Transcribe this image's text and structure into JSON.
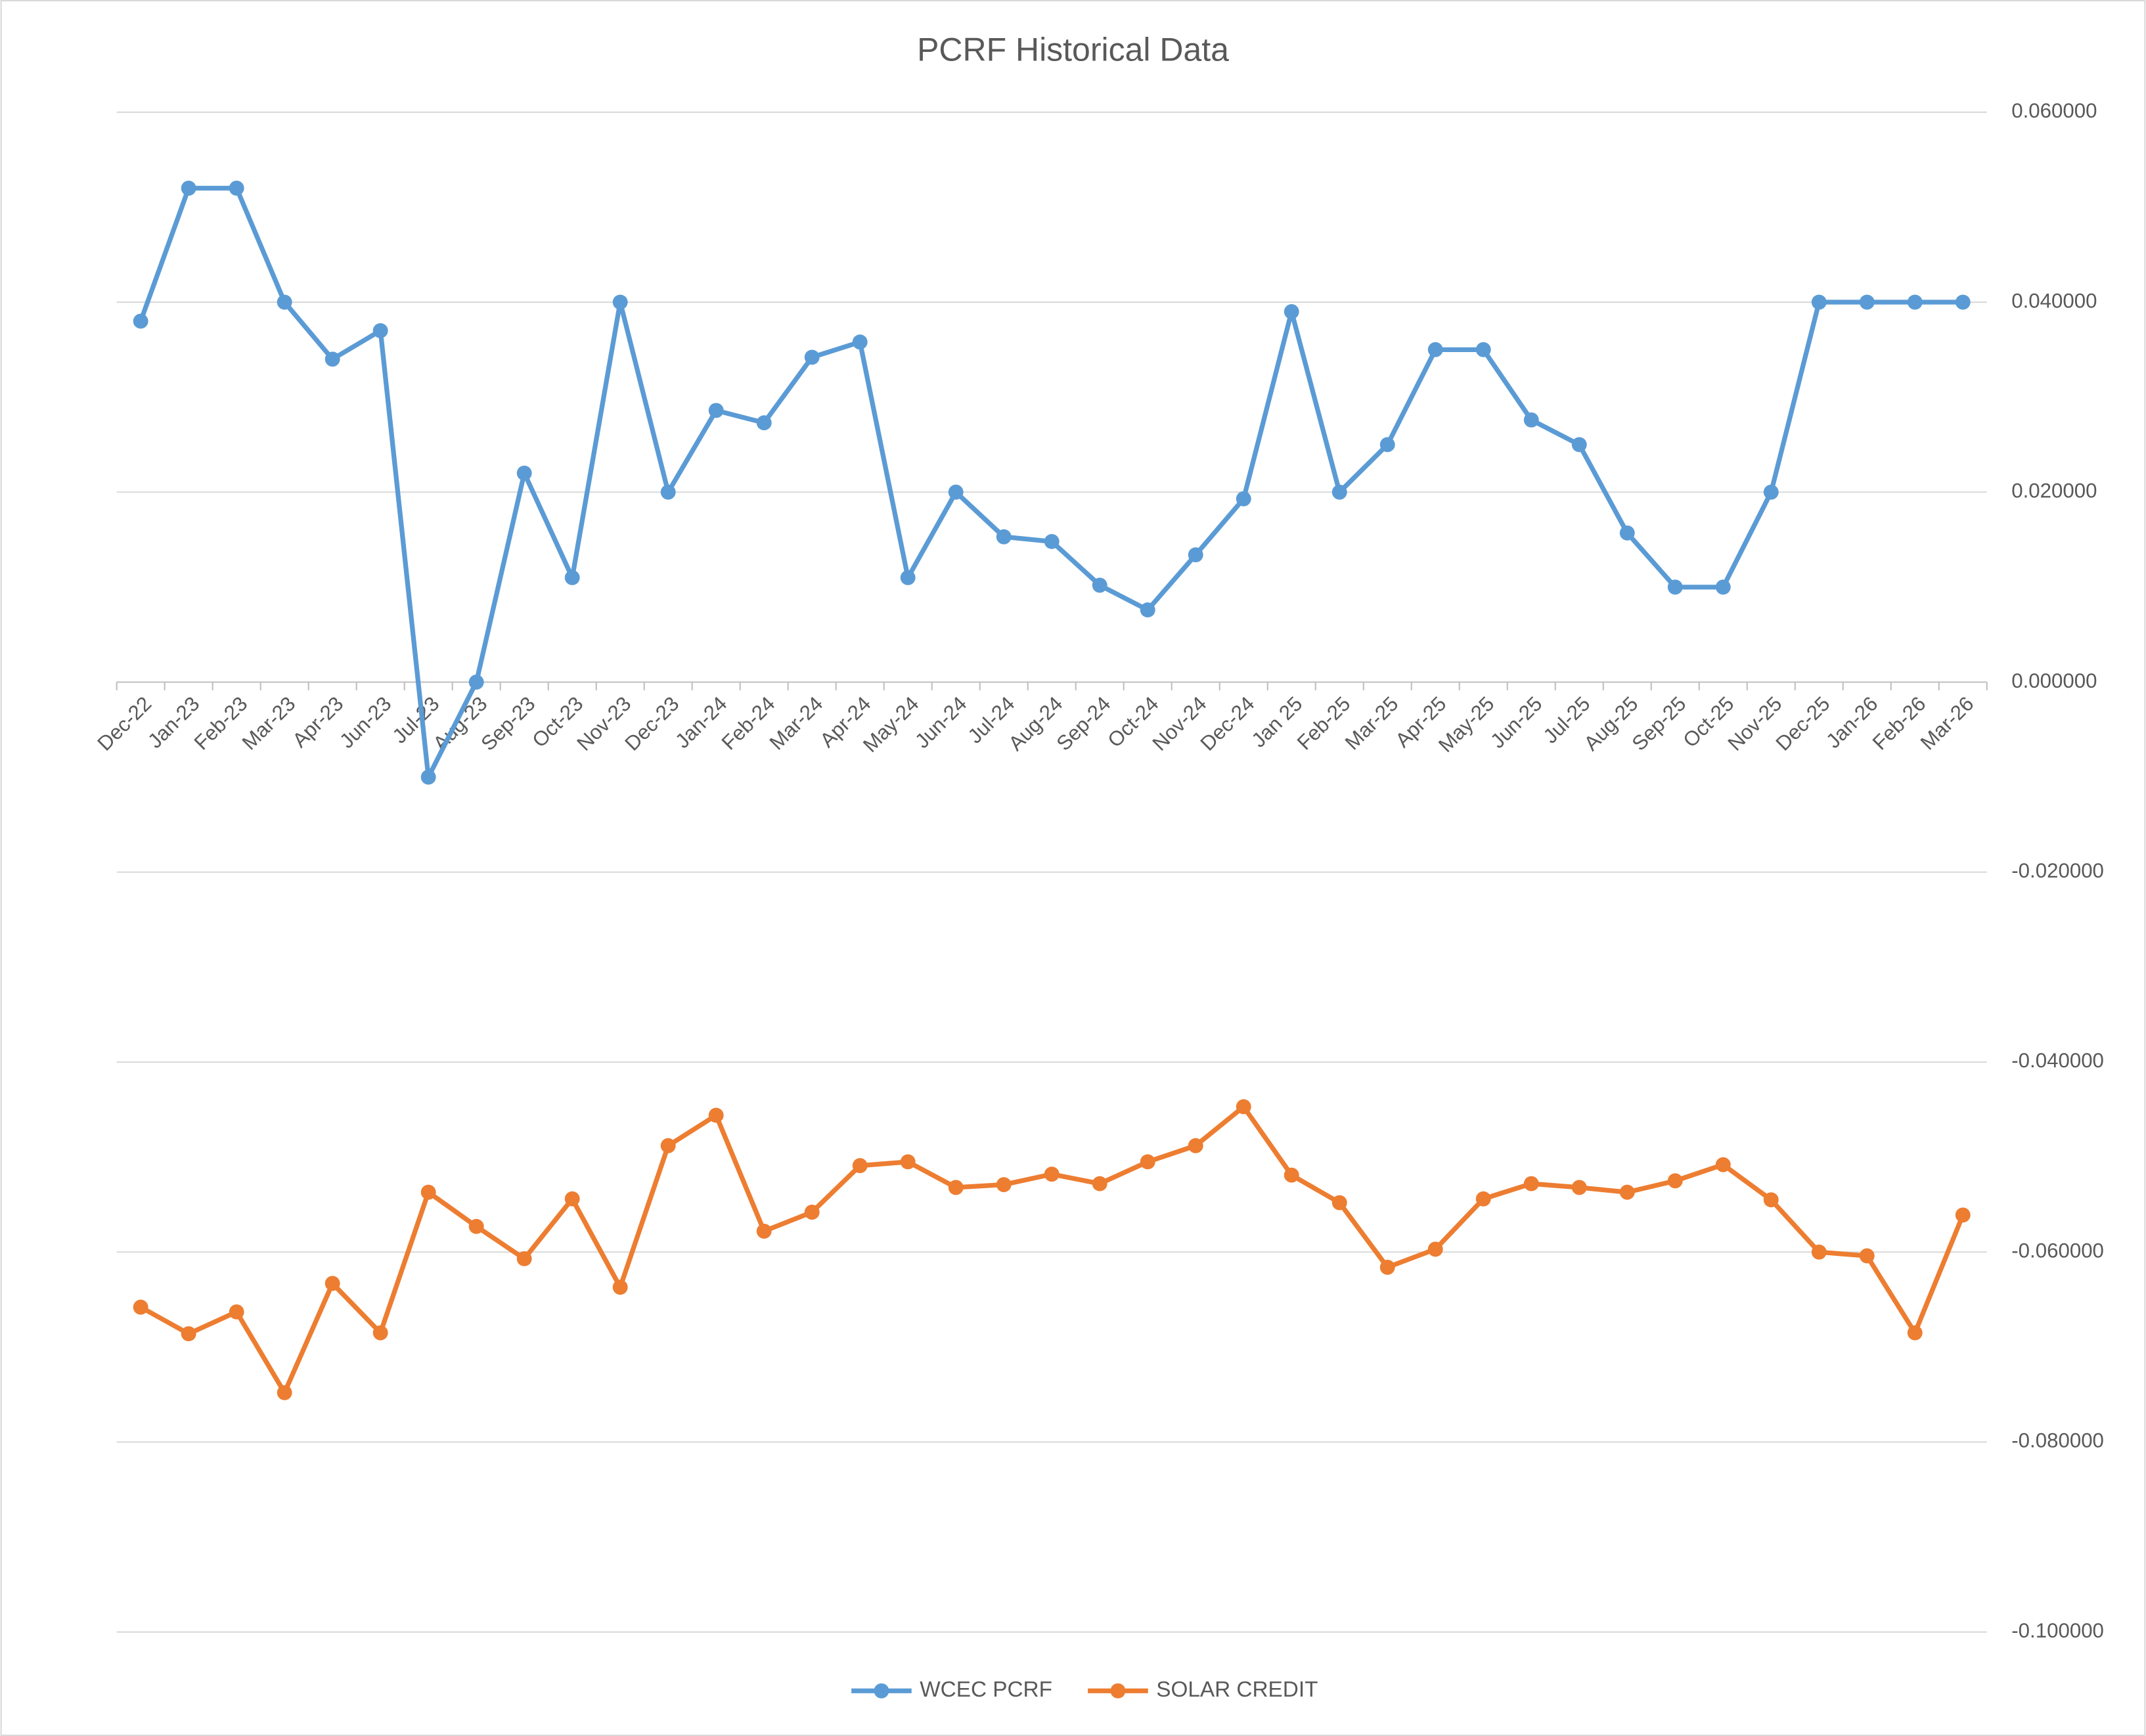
{
  "chart_data": {
    "type": "line",
    "title": "PCRF Historical Data",
    "categories": [
      "Dec-22",
      "Jan-23",
      "Feb-23",
      "Mar-23",
      "Apr-23",
      "Jun-23",
      "Jul-23",
      "Aug-23",
      "Sep-23",
      "Oct-23",
      "Nov-23",
      "Dec-23",
      "Jan-24",
      "Feb-24",
      "Mar-24",
      "Apr-24",
      "May-24",
      "Jun-24",
      "Jul-24",
      "Aug-24",
      "Sep-24",
      "Oct-24",
      "Nov-24",
      "Dec-24",
      "Jan 25",
      "Feb-25",
      "Mar-25",
      "Apr-25",
      "May-25",
      "Jun-25",
      "Jul-25",
      "Aug-25",
      "Sep-25",
      "Oct-25",
      "Nov-25",
      "Dec-25",
      "Jan-26",
      "Feb-26",
      "Mar-26"
    ],
    "series": [
      {
        "name": "WCEC PCRF",
        "color": "#5b9bd5",
        "values": [
          0.038,
          0.052,
          0.052,
          0.04,
          0.034,
          0.037,
          -0.01,
          0.0,
          0.022,
          0.011,
          0.04,
          0.02,
          0.0286,
          0.0273,
          0.0342,
          0.0358,
          0.011,
          0.02,
          0.0153,
          0.0148,
          0.0102,
          0.0076,
          0.0134,
          0.0193,
          0.039,
          0.02,
          0.025,
          0.035,
          0.035,
          0.0276,
          0.025,
          0.0157,
          0.01,
          0.01,
          0.02,
          0.04,
          0.04,
          0.04,
          0.04
        ]
      },
      {
        "name": "SOLAR CREDIT",
        "color": "#ed7d31",
        "values": [
          -0.0658,
          -0.0686,
          -0.0663,
          -0.0748,
          -0.0633,
          -0.0685,
          -0.0537,
          -0.0573,
          -0.0607,
          -0.0544,
          -0.0637,
          -0.0488,
          -0.0456,
          -0.0578,
          -0.0558,
          -0.0509,
          -0.0505,
          -0.0532,
          -0.0529,
          -0.0518,
          -0.0528,
          -0.0505,
          -0.0488,
          -0.0447,
          -0.0519,
          -0.0548,
          -0.0616,
          -0.0597,
          -0.0544,
          -0.0528,
          -0.0532,
          -0.0537,
          -0.0525,
          -0.0508,
          -0.0545,
          -0.06,
          -0.0604,
          -0.0685,
          -0.0561
        ]
      }
    ],
    "ylim": [
      -0.1,
      0.06
    ],
    "yticks": [
      {
        "value": -0.1,
        "label": "-0.100000"
      },
      {
        "value": -0.08,
        "label": "-0.080000"
      },
      {
        "value": -0.06,
        "label": "-0.060000"
      },
      {
        "value": -0.04,
        "label": "-0.040000"
      },
      {
        "value": -0.02,
        "label": "-0.020000"
      },
      {
        "value": 0,
        "label": "0.000000"
      },
      {
        "value": 0.02,
        "label": "0.020000"
      },
      {
        "value": 0.04,
        "label": "0.040000"
      },
      {
        "value": 0.06,
        "label": "0.060000"
      }
    ],
    "grid": true,
    "legend": "bottom"
  }
}
